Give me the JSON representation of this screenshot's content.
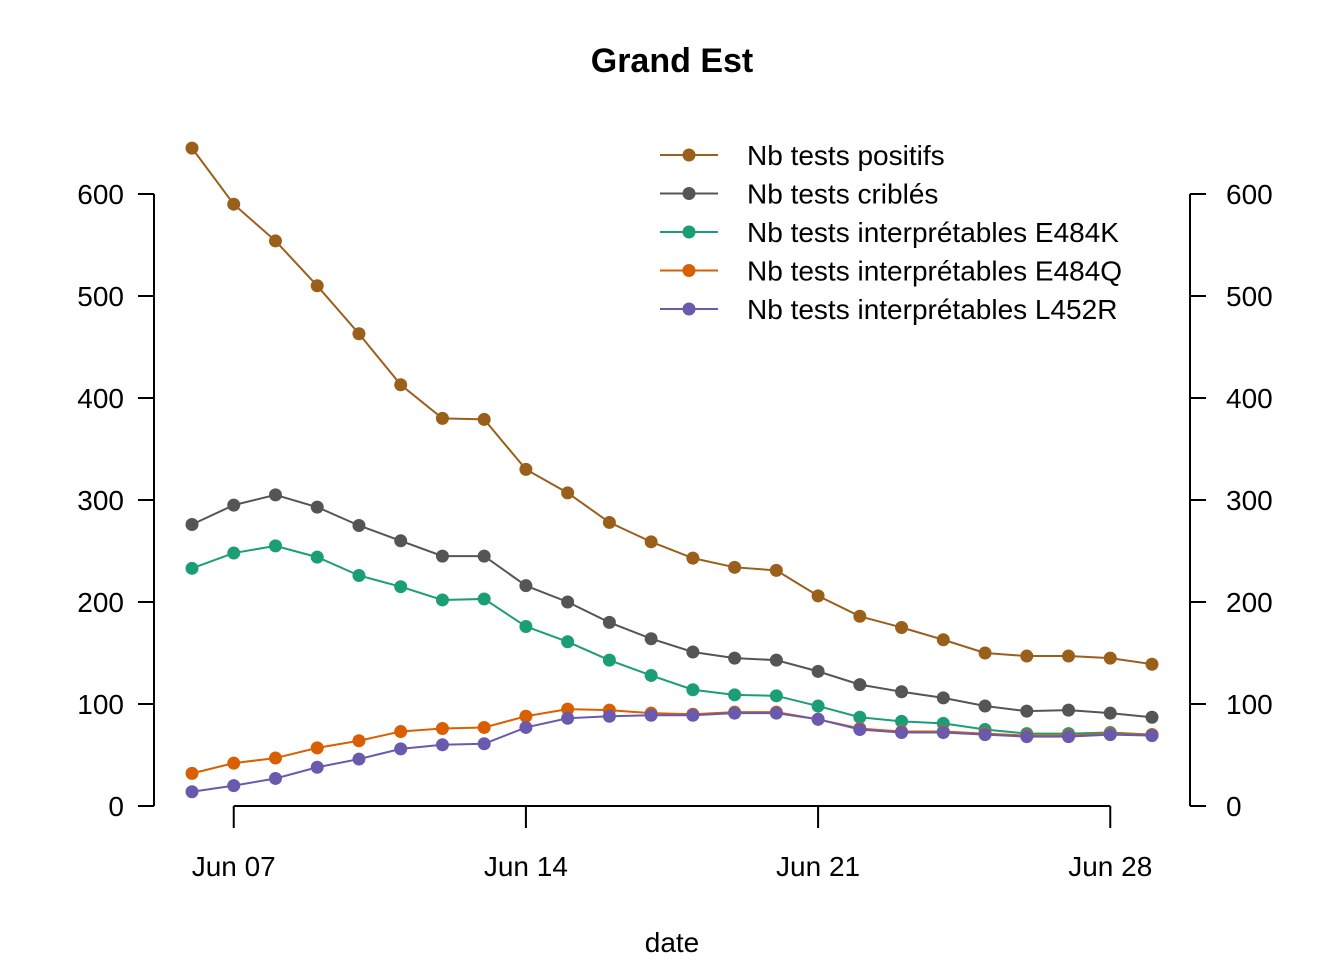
{
  "chart_data": {
    "type": "line",
    "title": "Grand Est",
    "xlabel": "date",
    "ylabel": "",
    "ylim": [
      0,
      600
    ],
    "yticks": [
      0,
      100,
      200,
      300,
      400,
      500,
      600
    ],
    "y_tick_labels": [
      "0",
      "100",
      "200",
      "300",
      "400",
      "500",
      "600"
    ],
    "secondary_y_axis": true,
    "x_dates": [
      "2021-06-06",
      "2021-06-07",
      "2021-06-08",
      "2021-06-09",
      "2021-06-10",
      "2021-06-11",
      "2021-06-12",
      "2021-06-13",
      "2021-06-14",
      "2021-06-15",
      "2021-06-16",
      "2021-06-17",
      "2021-06-18",
      "2021-06-19",
      "2021-06-20",
      "2021-06-21",
      "2021-06-22",
      "2021-06-23",
      "2021-06-24",
      "2021-06-25",
      "2021-06-26",
      "2021-06-27",
      "2021-06-28",
      "2021-06-29"
    ],
    "x_ticks": [
      {
        "date": "2021-06-07",
        "label": "Jun 07"
      },
      {
        "date": "2021-06-14",
        "label": "Jun 14"
      },
      {
        "date": "2021-06-21",
        "label": "Jun 21"
      },
      {
        "date": "2021-06-28",
        "label": "Jun 28"
      }
    ],
    "legend_position": "top-right",
    "grid": false,
    "series": [
      {
        "name": "Nb tests positifs",
        "color": "#9b5f1c",
        "values": [
          645,
          590,
          554,
          510,
          463,
          413,
          380,
          379,
          330,
          307,
          278,
          259,
          243,
          234,
          231,
          206,
          186,
          175,
          163,
          150,
          147,
          147,
          145,
          139
        ]
      },
      {
        "name": "Nb tests criblés",
        "color": "#555555",
        "values": [
          276,
          295,
          305,
          293,
          275,
          260,
          245,
          245,
          216,
          200,
          180,
          164,
          151,
          145,
          143,
          132,
          119,
          112,
          106,
          98,
          93,
          94,
          91,
          87
        ]
      },
      {
        "name": "Nb tests interprétables E484K",
        "color": "#1b9e77",
        "values": [
          233,
          248,
          255,
          244,
          226,
          215,
          202,
          203,
          176,
          161,
          143,
          128,
          114,
          109,
          108,
          98,
          87,
          83,
          81,
          75,
          71,
          71,
          72,
          70
        ]
      },
      {
        "name": "Nb tests interprétables E484Q",
        "color": "#d95f02",
        "values": [
          32,
          42,
          47,
          57,
          64,
          73,
          76,
          77,
          88,
          95,
          94,
          91,
          90,
          92,
          92,
          85,
          76,
          73,
          73,
          71,
          69,
          69,
          71,
          70
        ]
      },
      {
        "name": "Nb tests interprétables L452R",
        "color": "#6a5aad",
        "values": [
          14,
          20,
          27,
          38,
          46,
          56,
          60,
          61,
          77,
          86,
          88,
          89,
          89,
          91,
          91,
          85,
          75,
          72,
          72,
          70,
          68,
          68,
          70,
          69
        ]
      }
    ]
  }
}
